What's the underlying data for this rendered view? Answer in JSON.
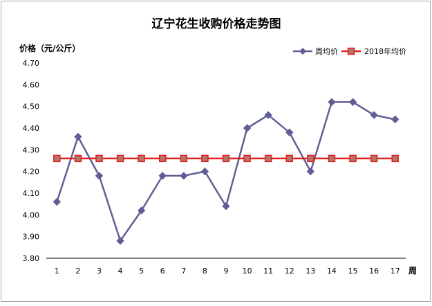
{
  "chart_data": {
    "type": "line",
    "title": "辽宁花生收购价格走势图",
    "ylabel": "价格（元/公斤）",
    "xlabel": "周",
    "categories": [
      "1",
      "2",
      "3",
      "4",
      "5",
      "6",
      "7",
      "8",
      "9",
      "10",
      "11",
      "12",
      "13",
      "14",
      "15",
      "16",
      "17"
    ],
    "ylim": [
      3.8,
      4.7
    ],
    "yticks": [
      "3.80",
      "3.90",
      "4.00",
      "4.10",
      "4.20",
      "4.30",
      "4.40",
      "4.50",
      "4.60",
      "4.70"
    ],
    "grid": false,
    "legend": "top-right",
    "series": [
      {
        "name": "周均价",
        "color": "#5f5f95",
        "marker": "diamond",
        "values": [
          4.06,
          4.36,
          4.18,
          3.88,
          4.02,
          4.18,
          4.18,
          4.2,
          4.04,
          4.4,
          4.46,
          4.38,
          4.2,
          4.52,
          4.52,
          4.46,
          4.44
        ]
      },
      {
        "name": "2018年均价",
        "color": "#e0201b",
        "marker": "square",
        "marker_fill": "#b3746e",
        "values": [
          4.26,
          4.26,
          4.26,
          4.26,
          4.26,
          4.26,
          4.26,
          4.26,
          4.26,
          4.26,
          4.26,
          4.26,
          4.26,
          4.26,
          4.26,
          4.26,
          4.26
        ]
      }
    ]
  }
}
